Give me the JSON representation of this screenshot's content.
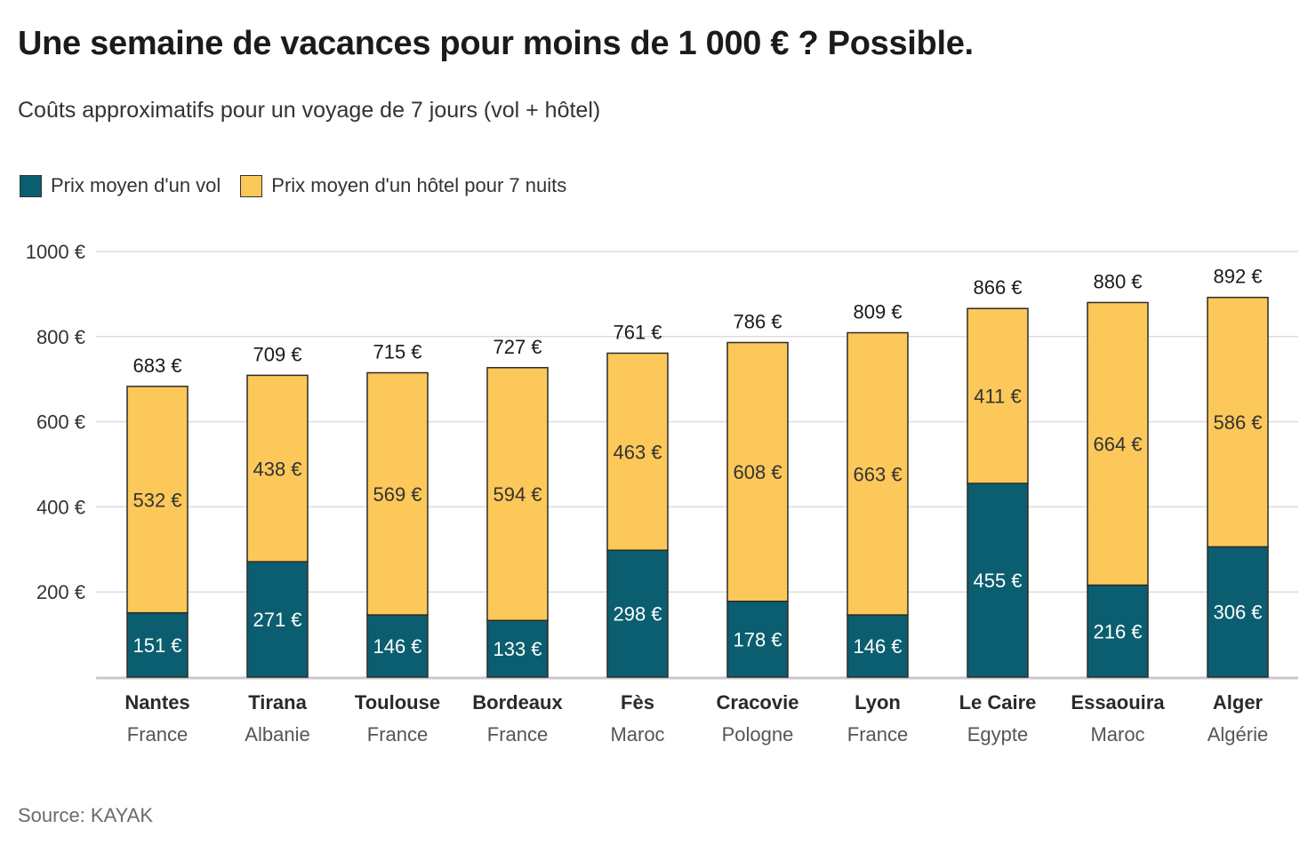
{
  "chart_data": {
    "type": "bar",
    "stacked": true,
    "title": "Une semaine de vacances pour moins de 1 000 € ? Possible.",
    "subtitle": "Coûts approximatifs pour un voyage de 7 jours (vol + hôtel)",
    "source": "Source: KAYAK",
    "currency_suffix": " €",
    "categories": [
      "Nantes",
      "Tirana",
      "Toulouse",
      "Bordeaux",
      "Fès",
      "Cracovie",
      "Lyon",
      "Le Caire",
      "Essaouira",
      "Alger"
    ],
    "countries": [
      "France",
      "Albanie",
      "France",
      "France",
      "Maroc",
      "Pologne",
      "France",
      "Egypte",
      "Maroc",
      "Algérie"
    ],
    "series": [
      {
        "name": "Prix moyen d'un vol",
        "color": "#0b5e6f",
        "values": [
          151,
          271,
          146,
          133,
          298,
          178,
          146,
          455,
          216,
          306
        ]
      },
      {
        "name": "Prix moyen d'un hôtel pour 7 nuits",
        "color": "#fcc85a",
        "values": [
          532,
          438,
          569,
          594,
          463,
          608,
          663,
          411,
          664,
          586
        ]
      }
    ],
    "totals": [
      683,
      709,
      715,
      727,
      761,
      786,
      809,
      866,
      880,
      892
    ],
    "ylim": [
      0,
      1000
    ],
    "yticks": [
      200,
      400,
      600,
      800,
      1000
    ],
    "ytick_labels": [
      "200 €",
      "400 €",
      "600 €",
      "800 €",
      "1000 €"
    ],
    "grid": true,
    "legend_position": "top-left"
  }
}
